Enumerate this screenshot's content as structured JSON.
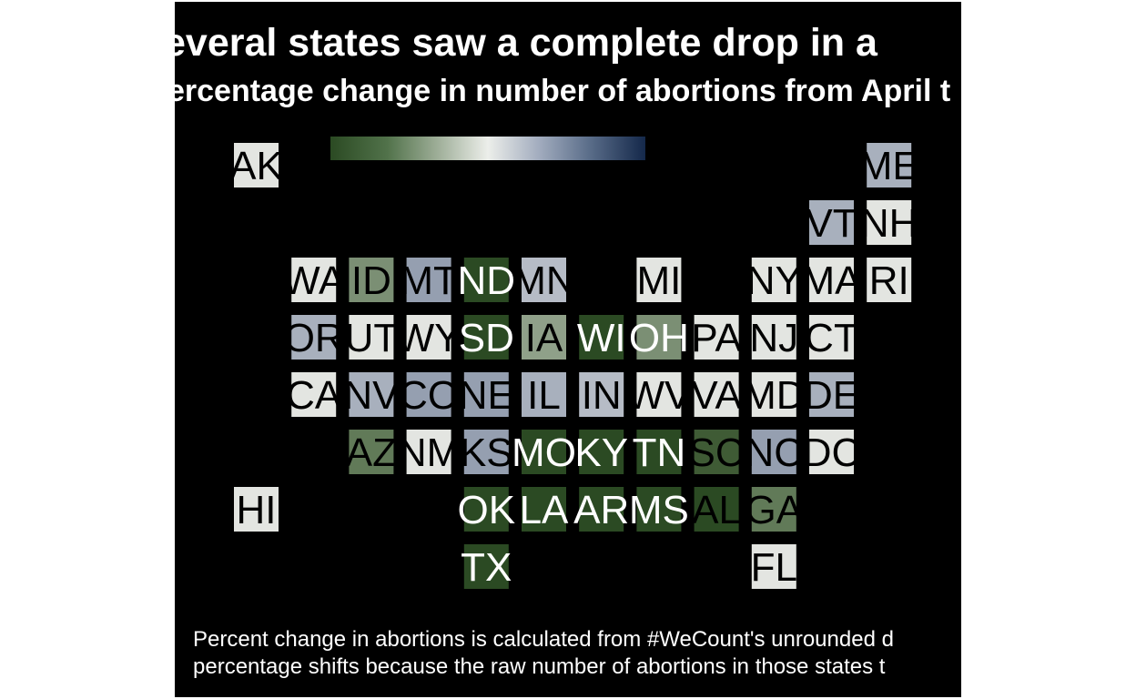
{
  "title": "everal states saw a complete drop in a",
  "subtitle": "ercentage change in number of abortions from April t",
  "caption_lines": [
    "Percent change in abortions is calculated from #WeCount's unrounded d",
    "percentage shifts because the raw number of abortions in those states t"
  ],
  "legend": {
    "type": "diverging-gradient",
    "low_color": "#2b4a23",
    "mid_color": "#eceeea",
    "high_color": "#14284a"
  },
  "colors": {
    "background": "#000000",
    "text_light": "#ffffff",
    "text_dark": "#000000"
  },
  "states": [
    {
      "abbr": "AK",
      "row": 0,
      "col": 0,
      "fill": "#e3e5e1",
      "text": "#000000"
    },
    {
      "abbr": "ME",
      "row": 0,
      "col": 11,
      "fill": "#a8b0bd",
      "text": "#000000"
    },
    {
      "abbr": "VT",
      "row": 1,
      "col": 10,
      "fill": "#a8b0bd",
      "text": "#000000"
    },
    {
      "abbr": "NH",
      "row": 1,
      "col": 11,
      "fill": "#e3e5e1",
      "text": "#000000"
    },
    {
      "abbr": "WA",
      "row": 2,
      "col": 1,
      "fill": "#e3e5e1",
      "text": "#000000"
    },
    {
      "abbr": "ID",
      "row": 2,
      "col": 2,
      "fill": "#7b8f74",
      "text": "#000000"
    },
    {
      "abbr": "MT",
      "row": 2,
      "col": 3,
      "fill": "#959fb0",
      "text": "#000000"
    },
    {
      "abbr": "ND",
      "row": 2,
      "col": 4,
      "fill": "#2b4a23",
      "text": "#ffffff"
    },
    {
      "abbr": "MN",
      "row": 2,
      "col": 5,
      "fill": "#b6bcc6",
      "text": "#000000"
    },
    {
      "abbr": "MI",
      "row": 2,
      "col": 7,
      "fill": "#e3e5e1",
      "text": "#000000"
    },
    {
      "abbr": "NY",
      "row": 2,
      "col": 9,
      "fill": "#e3e5e1",
      "text": "#000000"
    },
    {
      "abbr": "MA",
      "row": 2,
      "col": 10,
      "fill": "#e3e5e1",
      "text": "#000000"
    },
    {
      "abbr": "RI",
      "row": 2,
      "col": 11,
      "fill": "#e3e5e1",
      "text": "#000000"
    },
    {
      "abbr": "OR",
      "row": 3,
      "col": 1,
      "fill": "#a8b0bd",
      "text": "#000000"
    },
    {
      "abbr": "UT",
      "row": 3,
      "col": 2,
      "fill": "#e3e5e1",
      "text": "#000000"
    },
    {
      "abbr": "WY",
      "row": 3,
      "col": 3,
      "fill": "#e3e5e1",
      "text": "#000000"
    },
    {
      "abbr": "SD",
      "row": 3,
      "col": 4,
      "fill": "#2b4a23",
      "text": "#ffffff"
    },
    {
      "abbr": "IA",
      "row": 3,
      "col": 5,
      "fill": "#8fa089",
      "text": "#000000"
    },
    {
      "abbr": "WI",
      "row": 3,
      "col": 6,
      "fill": "#2b4a23",
      "text": "#ffffff"
    },
    {
      "abbr": "OH",
      "row": 3,
      "col": 7,
      "fill": "#7b8f74",
      "text": "#ffffff"
    },
    {
      "abbr": "PA",
      "row": 3,
      "col": 8,
      "fill": "#e3e5e1",
      "text": "#000000"
    },
    {
      "abbr": "NJ",
      "row": 3,
      "col": 9,
      "fill": "#e3e5e1",
      "text": "#000000"
    },
    {
      "abbr": "CT",
      "row": 3,
      "col": 10,
      "fill": "#e3e5e1",
      "text": "#000000"
    },
    {
      "abbr": "CA",
      "row": 4,
      "col": 1,
      "fill": "#e3e5e1",
      "text": "#000000"
    },
    {
      "abbr": "NV",
      "row": 4,
      "col": 2,
      "fill": "#a8b0bd",
      "text": "#000000"
    },
    {
      "abbr": "CO",
      "row": 4,
      "col": 3,
      "fill": "#959fb0",
      "text": "#000000"
    },
    {
      "abbr": "NE",
      "row": 4,
      "col": 4,
      "fill": "#959fb0",
      "text": "#000000"
    },
    {
      "abbr": "IL",
      "row": 4,
      "col": 5,
      "fill": "#a8b0bd",
      "text": "#000000"
    },
    {
      "abbr": "IN",
      "row": 4,
      "col": 6,
      "fill": "#b6bcc6",
      "text": "#000000"
    },
    {
      "abbr": "WV",
      "row": 4,
      "col": 7,
      "fill": "#e3e5e1",
      "text": "#000000"
    },
    {
      "abbr": "VA",
      "row": 4,
      "col": 8,
      "fill": "#e3e5e1",
      "text": "#000000"
    },
    {
      "abbr": "MD",
      "row": 4,
      "col": 9,
      "fill": "#e3e5e1",
      "text": "#000000"
    },
    {
      "abbr": "DE",
      "row": 4,
      "col": 10,
      "fill": "#a8b0bd",
      "text": "#000000"
    },
    {
      "abbr": "AZ",
      "row": 5,
      "col": 2,
      "fill": "#617a58",
      "text": "#000000"
    },
    {
      "abbr": "NM",
      "row": 5,
      "col": 3,
      "fill": "#e3e5e1",
      "text": "#000000"
    },
    {
      "abbr": "KS",
      "row": 5,
      "col": 4,
      "fill": "#959fb0",
      "text": "#000000"
    },
    {
      "abbr": "MO",
      "row": 5,
      "col": 5,
      "fill": "#2b4a23",
      "text": "#ffffff"
    },
    {
      "abbr": "KY",
      "row": 5,
      "col": 6,
      "fill": "#2b4a23",
      "text": "#ffffff"
    },
    {
      "abbr": "TN",
      "row": 5,
      "col": 7,
      "fill": "#2b4a23",
      "text": "#ffffff"
    },
    {
      "abbr": "SC",
      "row": 5,
      "col": 8,
      "fill": "#3f5b35",
      "text": "#000000"
    },
    {
      "abbr": "NC",
      "row": 5,
      "col": 9,
      "fill": "#959fb0",
      "text": "#000000"
    },
    {
      "abbr": "DC",
      "row": 5,
      "col": 10,
      "fill": "#e3e5e1",
      "text": "#000000"
    },
    {
      "abbr": "HI",
      "row": 6,
      "col": 0,
      "fill": "#e3e5e1",
      "text": "#000000"
    },
    {
      "abbr": "OK",
      "row": 6,
      "col": 4,
      "fill": "#2b4a23",
      "text": "#ffffff"
    },
    {
      "abbr": "LA",
      "row": 6,
      "col": 5,
      "fill": "#2b4a23",
      "text": "#ffffff"
    },
    {
      "abbr": "AR",
      "row": 6,
      "col": 6,
      "fill": "#2b4a23",
      "text": "#ffffff"
    },
    {
      "abbr": "MS",
      "row": 6,
      "col": 7,
      "fill": "#2b4a23",
      "text": "#ffffff"
    },
    {
      "abbr": "AL",
      "row": 6,
      "col": 8,
      "fill": "#2b4a23",
      "text": "#000000"
    },
    {
      "abbr": "GA",
      "row": 6,
      "col": 9,
      "fill": "#617a58",
      "text": "#000000"
    },
    {
      "abbr": "TX",
      "row": 7,
      "col": 4,
      "fill": "#2b4a23",
      "text": "#ffffff"
    },
    {
      "abbr": "FL",
      "row": 7,
      "col": 9,
      "fill": "#e3e5e1",
      "text": "#000000"
    }
  ]
}
